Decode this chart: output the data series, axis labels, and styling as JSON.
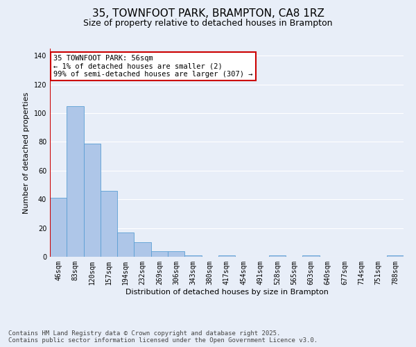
{
  "title": "35, TOWNFOOT PARK, BRAMPTON, CA8 1RZ",
  "subtitle": "Size of property relative to detached houses in Brampton",
  "xlabel": "Distribution of detached houses by size in Brampton",
  "ylabel": "Number of detached properties",
  "categories": [
    "46sqm",
    "83sqm",
    "120sqm",
    "157sqm",
    "194sqm",
    "232sqm",
    "269sqm",
    "306sqm",
    "343sqm",
    "380sqm",
    "417sqm",
    "454sqm",
    "491sqm",
    "528sqm",
    "565sqm",
    "603sqm",
    "640sqm",
    "677sqm",
    "714sqm",
    "751sqm",
    "788sqm"
  ],
  "values": [
    41,
    105,
    79,
    46,
    17,
    10,
    4,
    4,
    1,
    0,
    1,
    0,
    0,
    1,
    0,
    1,
    0,
    0,
    0,
    0,
    1
  ],
  "bar_color": "#aec6e8",
  "bar_edge_color": "#5a9fd4",
  "highlight_line_color": "#cc0000",
  "annotation_text": "35 TOWNFOOT PARK: 56sqm\n← 1% of detached houses are smaller (2)\n99% of semi-detached houses are larger (307) →",
  "annotation_box_color": "#ffffff",
  "annotation_box_edge": "#cc0000",
  "ylim": [
    0,
    145
  ],
  "yticks": [
    0,
    20,
    40,
    60,
    80,
    100,
    120,
    140
  ],
  "bg_color": "#e8eef8",
  "plot_bg_color": "#e8eef8",
  "footer": "Contains HM Land Registry data © Crown copyright and database right 2025.\nContains public sector information licensed under the Open Government Licence v3.0.",
  "title_fontsize": 11,
  "subtitle_fontsize": 9,
  "xlabel_fontsize": 8,
  "ylabel_fontsize": 8,
  "tick_fontsize": 7,
  "footer_fontsize": 6.5,
  "annotation_fontsize": 7.5
}
